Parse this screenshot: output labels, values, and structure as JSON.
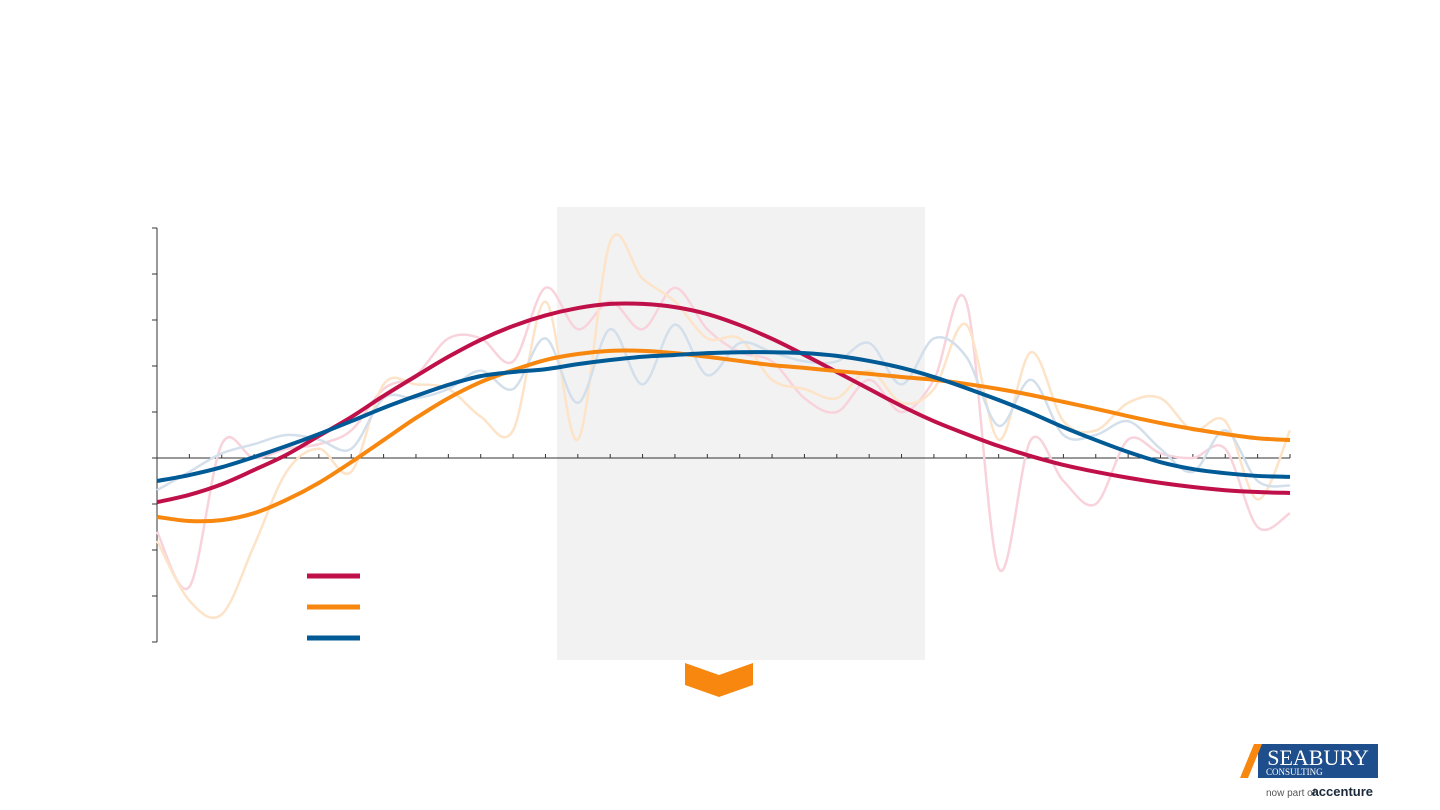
{
  "chart_data": {
    "type": "line",
    "categories": [
      null,
      null,
      null,
      null,
      null,
      null,
      null,
      null,
      null,
      null,
      null,
      null,
      null,
      null,
      null,
      null,
      null,
      null,
      null,
      null,
      null,
      null,
      null,
      null,
      null,
      null,
      null,
      null,
      null,
      null,
      null,
      null,
      null,
      null,
      null,
      null
    ],
    "ylim": [
      -4,
      5
    ],
    "yticks": [
      -4,
      -3,
      -2,
      -1,
      0,
      1,
      2,
      3,
      4,
      5
    ],
    "series": [
      {
        "color": "#f9d3dc",
        "values": [
          -1.6,
          -2.8,
          0.3,
          0,
          0.2,
          0.3,
          0.6,
          1.5,
          1.8,
          2.6,
          2.6,
          2.1,
          3.7,
          2.8,
          3.4,
          2.8,
          3.7,
          2.8,
          2.3,
          2.1,
          1.3,
          1,
          1.7,
          1,
          1.7,
          3.4,
          -2.4,
          0.4,
          -0.5,
          -1,
          0.4,
          0.1,
          0,
          0.2,
          -1.5,
          -1.2
        ]
      },
      {
        "color": "#fde3c8",
        "values": [
          -1.8,
          -3.1,
          -3.4,
          -1.9,
          -0.3,
          0.2,
          -0.3,
          1.6,
          1.6,
          1.5,
          0.9,
          0.6,
          3.4,
          0.4,
          4.7,
          3.9,
          3.4,
          2.6,
          2.6,
          1.7,
          1.5,
          1.3,
          1.9,
          1.2,
          1.5,
          2.9,
          0.4,
          2.3,
          0.8,
          0.6,
          1.2,
          1.3,
          0.6,
          0.8,
          -0.9,
          0.6
        ]
      },
      {
        "color": "#d3dfeb",
        "values": [
          -0.7,
          -0.3,
          0.1,
          0.3,
          0.5,
          0.4,
          0.2,
          1.3,
          1.3,
          1.5,
          1.9,
          1.5,
          2.6,
          1.2,
          2.8,
          1.6,
          2.9,
          1.8,
          2.5,
          2.3,
          2.1,
          2.1,
          2.5,
          1.6,
          2.6,
          2.2,
          0.7,
          1.7,
          0.5,
          0.5,
          0.8,
          0.2,
          -0.3,
          0.6,
          -0.5,
          -0.6
        ]
      },
      {
        "color": "#c0104a",
        "values": [
          -0.96,
          -0.8,
          -0.57,
          -0.26,
          0.07,
          0.48,
          0.89,
          1.35,
          1.78,
          2.2,
          2.57,
          2.87,
          3.1,
          3.26,
          3.35,
          3.35,
          3.28,
          3.13,
          2.89,
          2.59,
          2.24,
          1.87,
          1.5,
          1.13,
          0.8,
          0.52,
          0.26,
          0.04,
          -0.15,
          -0.3,
          -0.43,
          -0.54,
          -0.63,
          -0.7,
          -0.74,
          -0.76
        ]
      },
      {
        "color": "#f7870f",
        "values": [
          -1.28,
          -1.37,
          -1.35,
          -1.2,
          -0.91,
          -0.54,
          -0.09,
          0.39,
          0.87,
          1.3,
          1.65,
          1.91,
          2.13,
          2.26,
          2.33,
          2.33,
          2.28,
          2.2,
          2.11,
          2.02,
          1.96,
          1.89,
          1.83,
          1.76,
          1.7,
          1.61,
          1.5,
          1.37,
          1.22,
          1.07,
          0.91,
          0.76,
          0.63,
          0.52,
          0.43,
          0.39
        ]
      },
      {
        "color": "#005a96",
        "values": [
          -0.5,
          -0.37,
          -0.2,
          0.02,
          0.26,
          0.52,
          0.8,
          1.09,
          1.35,
          1.59,
          1.78,
          1.87,
          1.93,
          2.04,
          2.13,
          2.2,
          2.24,
          2.28,
          2.3,
          2.3,
          2.28,
          2.22,
          2.11,
          1.96,
          1.76,
          1.52,
          1.26,
          0.98,
          0.67,
          0.39,
          0.13,
          -0.09,
          -0.24,
          -0.33,
          -0.39,
          -0.41
        ]
      }
    ]
  },
  "logo": {
    "name": "SEABURY",
    "sub": "CONSULTING",
    "tagline": "now part of",
    "brand": "accenture"
  }
}
